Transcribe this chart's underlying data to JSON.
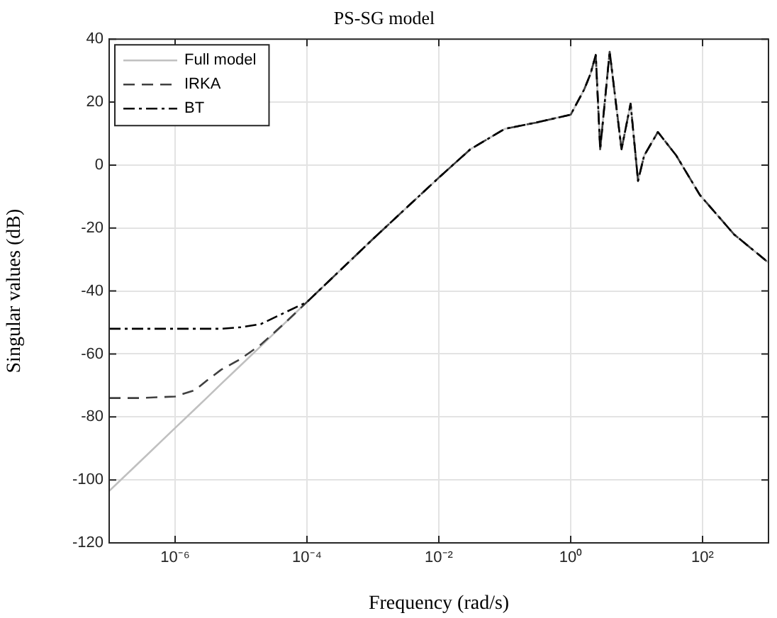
{
  "chart_data": {
    "type": "line",
    "title": "PS-SG model",
    "xlabel": "Frequency (rad/s)",
    "ylabel": "Singular values (dB)",
    "x": [
      1e-07,
      3e-07,
      1e-06,
      2e-06,
      3e-06,
      5e-06,
      1e-05,
      2e-05,
      5e-05,
      0.0001,
      0.001,
      0.01,
      0.03,
      0.1,
      0.3,
      1,
      1.6,
      2,
      2.4,
      2.8,
      3.9,
      5.9,
      8.1,
      10.5,
      13,
      21,
      40,
      91,
      300,
      1000
    ],
    "series": [
      {
        "name": "Full model",
        "color": "#c0c0c0",
        "line_style": "solid",
        "values": [
          -103.5,
          -94,
          -83.5,
          -77.5,
          -74,
          -69.5,
          -63.5,
          -57.5,
          -49.5,
          -43.5,
          -23.5,
          -4,
          5,
          11.5,
          13.5,
          16,
          24,
          29,
          35,
          5,
          36,
          5,
          19.5,
          -5,
          3,
          10.5,
          3,
          -9.5,
          -22,
          -31
        ]
      },
      {
        "name": "IRKA",
        "color": "#404040",
        "line_style": "dashed",
        "values": [
          -74,
          -74,
          -73.5,
          -71.5,
          -68.5,
          -65,
          -61.5,
          -57,
          -49.5,
          -43.5,
          -23.5,
          -4,
          5,
          11.5,
          13.5,
          16,
          24,
          29,
          35,
          5,
          36,
          5,
          19.5,
          -5,
          3,
          10.5,
          3,
          -9.5,
          -22,
          -31
        ]
      },
      {
        "name": "BT",
        "color": "#000000",
        "line_style": "dashdot",
        "values": [
          -52,
          -52,
          -52,
          -52,
          -52,
          -52,
          -51.5,
          -50.5,
          -46.5,
          -43.5,
          -23.5,
          -4,
          5,
          11.5,
          13.5,
          16,
          24,
          29,
          35,
          5,
          36,
          5,
          19.5,
          -5,
          3,
          10.5,
          3,
          -9.5,
          -22,
          -31
        ]
      }
    ],
    "log": "x",
    "xlim": [
      1e-07,
      1000
    ],
    "xticks": [
      {
        "value": 1e-06,
        "label": "10⁻⁶"
      },
      {
        "value": 0.0001,
        "label": "10⁻⁴"
      },
      {
        "value": 0.01,
        "label": "10⁻²"
      },
      {
        "value": 1,
        "label": "10⁰"
      },
      {
        "value": 100,
        "label": "10²"
      }
    ],
    "ylim": [
      -120,
      40
    ],
    "yticks": [
      -120,
      -100,
      -80,
      -60,
      -40,
      -20,
      0,
      20,
      40
    ],
    "grid": true,
    "legend": "top left",
    "marker": "none"
  }
}
